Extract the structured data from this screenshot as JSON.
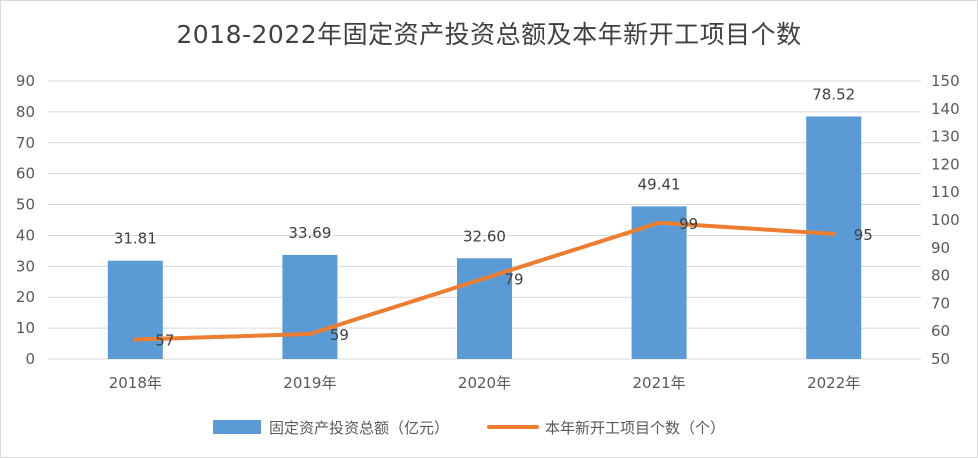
{
  "chart_data": {
    "type": "bar",
    "title": "2018-2022年固定资产投资总额及本年新开工项目个数",
    "categories": [
      "2018年",
      "2019年",
      "2020年",
      "2021年",
      "2022年"
    ],
    "series": [
      {
        "name": "固定资产投资总额（亿元）",
        "type": "bar",
        "axis": "left",
        "color": "#5b9bd5",
        "values": [
          31.81,
          33.69,
          32.6,
          49.41,
          78.52
        ],
        "labels": [
          "31.81",
          "33.69",
          "32.60",
          "49.41",
          "78.52"
        ]
      },
      {
        "name": "本年新开工项目个数（个）",
        "type": "line",
        "axis": "right",
        "color": "#ed7d31",
        "values": [
          57,
          59,
          79,
          99,
          95
        ],
        "labels": [
          "57",
          "59",
          "79",
          "99",
          "95"
        ]
      }
    ],
    "y_left": {
      "min": 0,
      "max": 90,
      "step": 10,
      "ticks": [
        "0",
        "10",
        "20",
        "30",
        "40",
        "50",
        "60",
        "70",
        "80",
        "90"
      ]
    },
    "y_right": {
      "min": 50,
      "max": 150,
      "step": 10,
      "ticks": [
        "50",
        "60",
        "70",
        "80",
        "90",
        "100",
        "110",
        "120",
        "130",
        "140",
        "150"
      ]
    },
    "grid": true,
    "legend": "bottom"
  }
}
